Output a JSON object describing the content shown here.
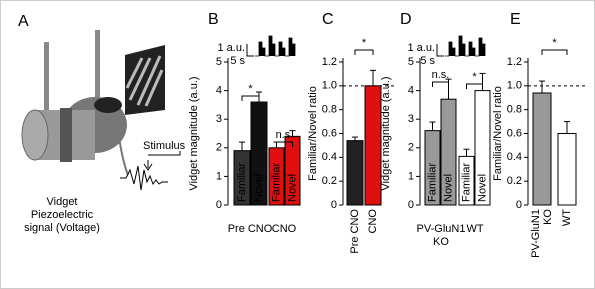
{
  "panel_a": {
    "label": "A",
    "stimulus": "Stimulus",
    "caption": [
      "Vidget",
      "Piezoelectric",
      "signal (Voltage)"
    ]
  },
  "chart_data": [
    {
      "type": "bar",
      "panel": "B",
      "ylabel": "Vidget magnitude (a.u.)",
      "ylim": [
        0,
        5
      ],
      "yticks": [
        0,
        1,
        2,
        3,
        4,
        5
      ],
      "categories": [
        "Familiar",
        "Novel",
        "Familiar",
        "Novel"
      ],
      "values": [
        1.9,
        3.6,
        2.0,
        2.4
      ],
      "errors": [
        0.3,
        0.35,
        0.2,
        0.2
      ],
      "colors": [
        "#333333",
        "#111111",
        "#e01010",
        "#e01010"
      ],
      "groups": [
        [
          "Pre CNO"
        ],
        [
          "CNO"
        ]
      ],
      "group_colors": [
        "#000000",
        "#e01010"
      ],
      "annotations": [
        "*",
        "n.s."
      ],
      "scale_bar": {
        "y": "1 a.u.",
        "x": "5 s"
      }
    },
    {
      "type": "bar",
      "panel": "C",
      "ylabel": "Familiar/Novel ratio",
      "ylim": [
        0,
        1.2
      ],
      "yticks": [
        0,
        0.2,
        0.4,
        0.6,
        0.8,
        {
          "value": 1,
          "label": "1.0"
        },
        1.2
      ],
      "categories": [
        [
          "Pre CNO"
        ],
        [
          "CNO"
        ]
      ],
      "values": [
        0.54,
        1.0
      ],
      "errors": [
        0.03,
        0.13
      ],
      "colors": [
        "#222222",
        "#e01010"
      ],
      "category_colors": [
        "#000000",
        "#e01010"
      ],
      "reference_line": 1,
      "annotations": [
        "*"
      ]
    },
    {
      "type": "bar",
      "panel": "D",
      "ylabel": "Vidget magnitude (a.u.)",
      "ylim": [
        0,
        5
      ],
      "yticks": [
        0,
        1,
        2,
        3,
        4,
        5
      ],
      "categories": [
        "Familiar",
        "Novel",
        "Familiar",
        "Novel"
      ],
      "values": [
        2.6,
        3.7,
        1.7,
        4.0
      ],
      "errors": [
        0.3,
        0.7,
        0.25,
        0.6
      ],
      "colors": [
        "#999999",
        "#999999",
        "#ffffff",
        "#ffffff"
      ],
      "groups": [
        [
          "PV-GluN1",
          "KO"
        ],
        [
          "WT"
        ]
      ],
      "group_colors": [
        "#000000",
        "#000000"
      ],
      "annotations": [
        "n.s.",
        "*"
      ],
      "scale_bar": {
        "y": "1 a.u.",
        "x": "5 s"
      }
    },
    {
      "type": "bar",
      "panel": "E",
      "ylabel": "Familiar/Novel ratio",
      "ylim": [
        0,
        1.2
      ],
      "yticks": [
        0,
        0.2,
        0.4,
        0.6,
        0.8,
        {
          "value": 1,
          "label": "1.0"
        },
        1.2
      ],
      "categories": [
        [
          "PV-GluN1",
          "KO"
        ],
        [
          "WT"
        ]
      ],
      "values": [
        0.94,
        0.6
      ],
      "errors": [
        0.1,
        0.1
      ],
      "colors": [
        "#999999",
        "#ffffff"
      ],
      "category_colors": [
        "#000000",
        "#000000"
      ],
      "reference_line": 1,
      "annotations": [
        "*"
      ]
    }
  ]
}
